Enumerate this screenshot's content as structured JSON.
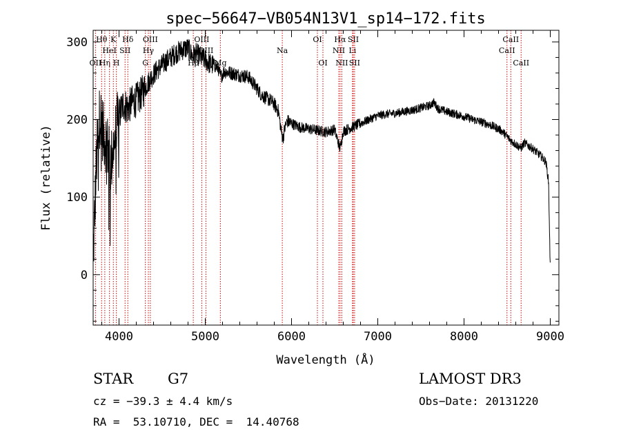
{
  "chart_data": {
    "type": "line",
    "title": "spec−56647−VB054N13V1_sp14−172.fits",
    "xlabel": "Wavelength (Å)",
    "ylabel": "Flux (relative)",
    "xlim": [
      3700,
      9100
    ],
    "ylim": [
      -65,
      315
    ],
    "xticks": [
      4000,
      5000,
      6000,
      7000,
      8000,
      9000
    ],
    "yticks": [
      0,
      100,
      200,
      300
    ],
    "line_color": "#000000",
    "marker_color": "#cc0000",
    "spectrum_anchors": [
      [
        3700,
        20
      ],
      [
        3740,
        150
      ],
      [
        3780,
        210
      ],
      [
        3820,
        180
      ],
      [
        3860,
        170
      ],
      [
        3900,
        140
      ],
      [
        3950,
        175
      ],
      [
        4000,
        205
      ],
      [
        4050,
        220
      ],
      [
        4100,
        215
      ],
      [
        4150,
        222
      ],
      [
        4200,
        225
      ],
      [
        4250,
        232
      ],
      [
        4300,
        240
      ],
      [
        4350,
        250
      ],
      [
        4400,
        258
      ],
      [
        4450,
        265
      ],
      [
        4500,
        270
      ],
      [
        4550,
        276
      ],
      [
        4600,
        280
      ],
      [
        4650,
        285
      ],
      [
        4700,
        288
      ],
      [
        4750,
        291
      ],
      [
        4800,
        292
      ],
      [
        4850,
        282
      ],
      [
        4900,
        285
      ],
      [
        4950,
        280
      ],
      [
        5000,
        277
      ],
      [
        5050,
        272
      ],
      [
        5100,
        270
      ],
      [
        5150,
        266
      ],
      [
        5180,
        255
      ],
      [
        5220,
        262
      ],
      [
        5300,
        260
      ],
      [
        5400,
        257
      ],
      [
        5500,
        255
      ],
      [
        5600,
        240
      ],
      [
        5650,
        232
      ],
      [
        5700,
        228
      ],
      [
        5750,
        225
      ],
      [
        5800,
        220
      ],
      [
        5850,
        210
      ],
      [
        5880,
        185
      ],
      [
        5900,
        175
      ],
      [
        5920,
        188
      ],
      [
        5950,
        198
      ],
      [
        6000,
        195
      ],
      [
        6100,
        190
      ],
      [
        6200,
        188
      ],
      [
        6300,
        186
      ],
      [
        6400,
        184
      ],
      [
        6500,
        187
      ],
      [
        6563,
        162
      ],
      [
        6600,
        185
      ],
      [
        6700,
        190
      ],
      [
        6800,
        195
      ],
      [
        6900,
        200
      ],
      [
        7000,
        205
      ],
      [
        7100,
        207
      ],
      [
        7200,
        208
      ],
      [
        7300,
        210
      ],
      [
        7400,
        212
      ],
      [
        7500,
        215
      ],
      [
        7600,
        218
      ],
      [
        7650,
        222
      ],
      [
        7700,
        214
      ],
      [
        7800,
        210
      ],
      [
        7900,
        207
      ],
      [
        8000,
        204
      ],
      [
        8100,
        200
      ],
      [
        8200,
        197
      ],
      [
        8300,
        193
      ],
      [
        8400,
        188
      ],
      [
        8450,
        184
      ],
      [
        8500,
        178
      ],
      [
        8550,
        172
      ],
      [
        8600,
        168
      ],
      [
        8660,
        163
      ],
      [
        8700,
        170
      ],
      [
        8800,
        162
      ],
      [
        8900,
        152
      ],
      [
        8950,
        145
      ],
      [
        8980,
        120
      ],
      [
        9000,
        5
      ]
    ],
    "line_markers": [
      {
        "label": "Hθ",
        "wavelength": 3798,
        "tier": 0
      },
      {
        "label": "Hη",
        "wavelength": 3835,
        "tier": 2
      },
      {
        "label": "OII",
        "wavelength": 3727,
        "tier": 2
      },
      {
        "label": "HeI",
        "wavelength": 3889,
        "tier": 1
      },
      {
        "label": "K",
        "wavelength": 3934,
        "tier": 0
      },
      {
        "label": "H",
        "wavelength": 3969,
        "tier": 2
      },
      {
        "label": "SII",
        "wavelength": 4070,
        "tier": 1
      },
      {
        "label": "Hδ",
        "wavelength": 4102,
        "tier": 0
      },
      {
        "label": "G",
        "wavelength": 4305,
        "tier": 2
      },
      {
        "label": "Hγ",
        "wavelength": 4340,
        "tier": 1
      },
      {
        "label": "OIII",
        "wavelength": 4363,
        "tier": 0
      },
      {
        "label": "Hβ",
        "wavelength": 4861,
        "tier": 2
      },
      {
        "label": "OIII",
        "wavelength": 4959,
        "tier": 0
      },
      {
        "label": "OIII",
        "wavelength": 5007,
        "tier": 1
      },
      {
        "label": "Mg",
        "wavelength": 5175,
        "tier": 2
      },
      {
        "label": "Na",
        "wavelength": 5893,
        "tier": 1
      },
      {
        "label": "OI",
        "wavelength": 6300,
        "tier": 0
      },
      {
        "label": "OI",
        "wavelength": 6364,
        "tier": 2
      },
      {
        "label": "NII",
        "wavelength": 6548,
        "tier": 1
      },
      {
        "label": "Hα",
        "wavelength": 6563,
        "tier": 0
      },
      {
        "label": "NII",
        "wavelength": 6583,
        "tier": 2
      },
      {
        "label": "Li",
        "wavelength": 6707,
        "tier": 1
      },
      {
        "label": "SII",
        "wavelength": 6716,
        "tier": 0
      },
      {
        "label": "SII",
        "wavelength": 6731,
        "tier": 2
      },
      {
        "label": "CaII",
        "wavelength": 8498,
        "tier": 1
      },
      {
        "label": "CaII",
        "wavelength": 8542,
        "tier": 0
      },
      {
        "label": "CaII",
        "wavelength": 8662,
        "tier": 2
      }
    ]
  },
  "footer": {
    "object_class": "STAR",
    "subclass": "G7",
    "survey": "LAMOST DR3",
    "redshift": "cz = −39.3 ± 4.4 km/s",
    "obs_date": "Obs−Date: 20131220",
    "coordinates": "RA =  53.10710, DEC =  14.40768"
  }
}
